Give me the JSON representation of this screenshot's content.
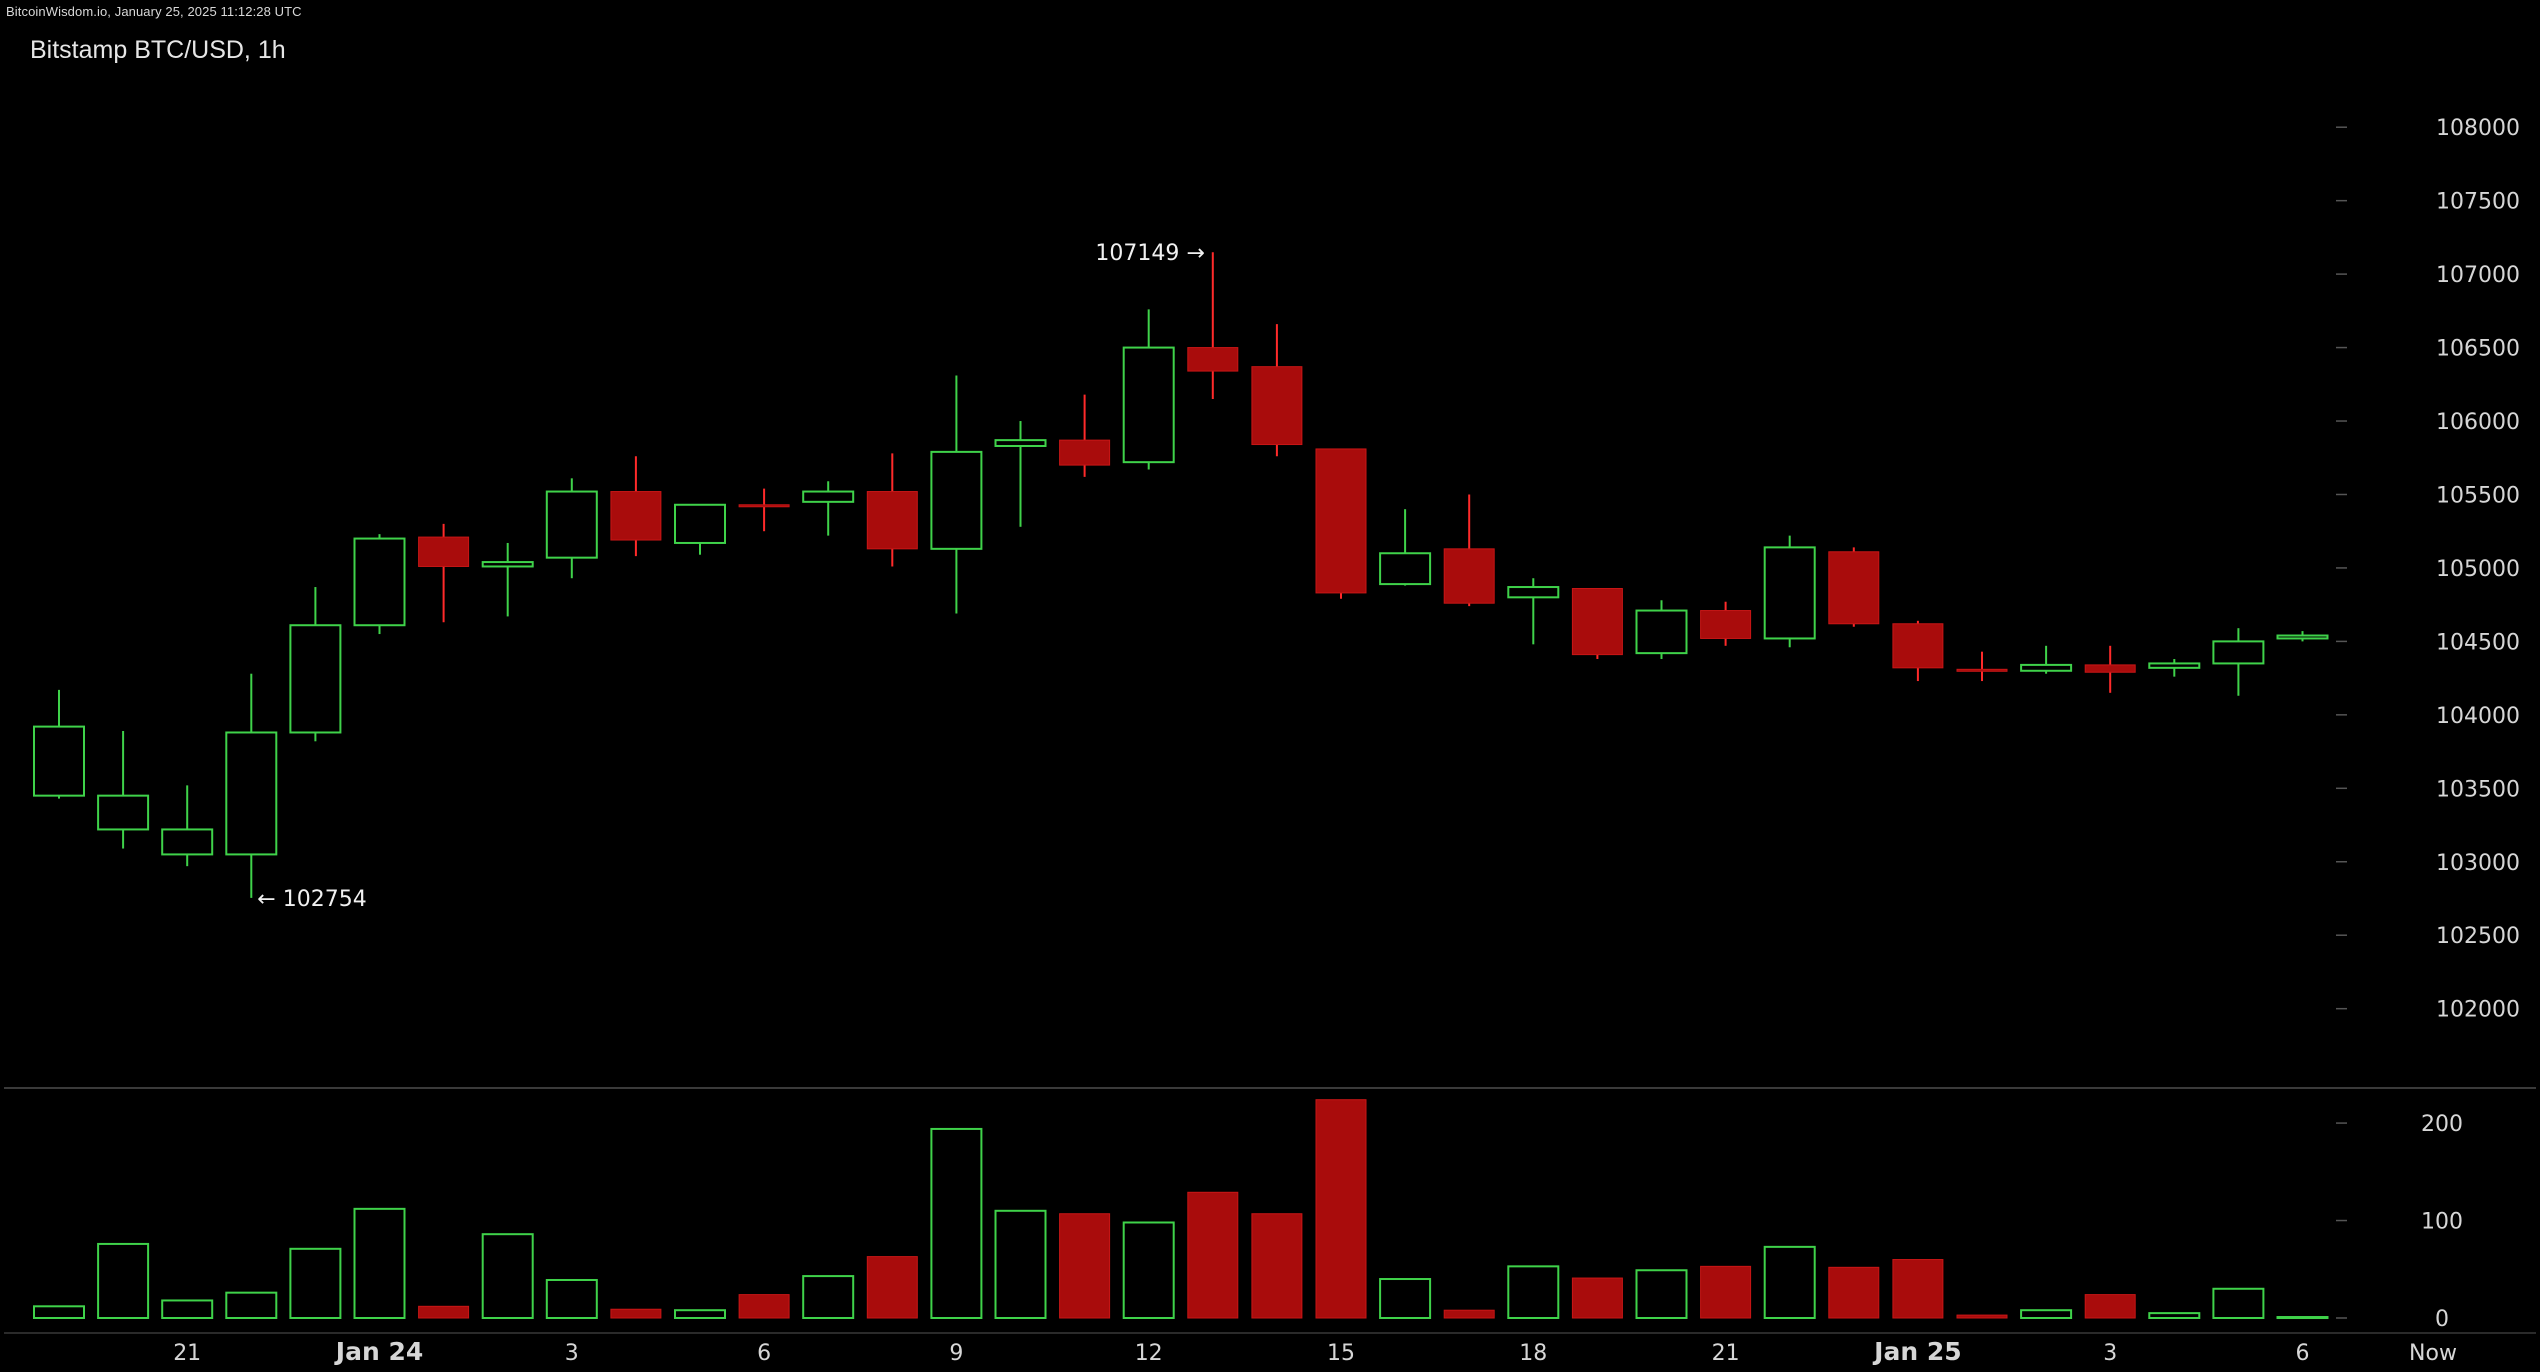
{
  "watermark": "BitcoinWisdom.io, January 25, 2025 11:12:28 UTC",
  "title": "Bitstamp BTC/USD, 1h",
  "colors": {
    "up": "#3fd24a",
    "down": "#a90c0c",
    "down_wick": "#ff2a2a",
    "axis_text": "#d6d6d6",
    "divider": "#3a3a3a",
    "background": "#000000"
  },
  "chart_data": {
    "type": "candlestick",
    "price_axis": {
      "ticks": [
        102000,
        102500,
        103000,
        103500,
        104000,
        104500,
        105000,
        105500,
        106000,
        106500,
        107000,
        107500,
        108000
      ],
      "range": [
        101460,
        108580
      ]
    },
    "volume_axis": {
      "ticks": [
        0,
        100,
        200
      ],
      "range": [
        0,
        236
      ]
    },
    "x_labels": [
      {
        "index": 2,
        "label": "21",
        "bold": false
      },
      {
        "index": 5,
        "label": "Jan 24",
        "bold": true
      },
      {
        "index": 8,
        "label": "3",
        "bold": false
      },
      {
        "index": 11,
        "label": "6",
        "bold": false
      },
      {
        "index": 14,
        "label": "9",
        "bold": false
      },
      {
        "index": 17,
        "label": "12",
        "bold": false
      },
      {
        "index": 20,
        "label": "15",
        "bold": false
      },
      {
        "index": 23,
        "label": "18",
        "bold": false
      },
      {
        "index": 26,
        "label": "21",
        "bold": false
      },
      {
        "index": 29,
        "label": "Jan 25",
        "bold": true
      },
      {
        "index": 32,
        "label": "3",
        "bold": false
      },
      {
        "index": 35,
        "label": "6",
        "bold": false
      },
      {
        "index": 37,
        "label": "Now",
        "bold": false
      }
    ],
    "annotations": [
      {
        "index": 3,
        "text": "← 102754",
        "anchor": "low"
      },
      {
        "index": 18,
        "text": "107149 →",
        "anchor": "high"
      }
    ],
    "candles": [
      {
        "o": 103450,
        "h": 104170,
        "l": 103430,
        "c": 103920,
        "v": 12
      },
      {
        "o": 103220,
        "h": 103890,
        "l": 103090,
        "c": 103450,
        "v": 76
      },
      {
        "o": 103050,
        "h": 103520,
        "l": 102970,
        "c": 103220,
        "v": 18
      },
      {
        "o": 103050,
        "h": 104280,
        "l": 102754,
        "c": 103880,
        "v": 26
      },
      {
        "o": 103880,
        "h": 104870,
        "l": 103820,
        "c": 104610,
        "v": 71
      },
      {
        "o": 104610,
        "h": 105230,
        "l": 104550,
        "c": 105200,
        "v": 112
      },
      {
        "o": 105210,
        "h": 105300,
        "l": 104630,
        "c": 105010,
        "v": 12
      },
      {
        "o": 105010,
        "h": 105170,
        "l": 104670,
        "c": 105040,
        "v": 86
      },
      {
        "o": 105070,
        "h": 105610,
        "l": 104930,
        "c": 105520,
        "v": 39
      },
      {
        "o": 105520,
        "h": 105760,
        "l": 105080,
        "c": 105190,
        "v": 9
      },
      {
        "o": 105170,
        "h": 105430,
        "l": 105090,
        "c": 105430,
        "v": 8
      },
      {
        "o": 105430,
        "h": 105540,
        "l": 105250,
        "c": 105420,
        "v": 24
      },
      {
        "o": 105450,
        "h": 105590,
        "l": 105220,
        "c": 105520,
        "v": 43
      },
      {
        "o": 105520,
        "h": 105780,
        "l": 105010,
        "c": 105130,
        "v": 63
      },
      {
        "o": 105130,
        "h": 106310,
        "l": 104690,
        "c": 105790,
        "v": 194
      },
      {
        "o": 105830,
        "h": 106000,
        "l": 105280,
        "c": 105870,
        "v": 110
      },
      {
        "o": 105870,
        "h": 106180,
        "l": 105620,
        "c": 105700,
        "v": 107
      },
      {
        "o": 105720,
        "h": 106760,
        "l": 105670,
        "c": 106500,
        "v": 98
      },
      {
        "o": 106500,
        "h": 107149,
        "l": 106150,
        "c": 106340,
        "v": 129
      },
      {
        "o": 106370,
        "h": 106660,
        "l": 105760,
        "c": 105840,
        "v": 107
      },
      {
        "o": 105810,
        "h": 105810,
        "l": 104790,
        "c": 104830,
        "v": 224
      },
      {
        "o": 104890,
        "h": 105400,
        "l": 104880,
        "c": 105100,
        "v": 40
      },
      {
        "o": 105130,
        "h": 105500,
        "l": 104740,
        "c": 104760,
        "v": 8
      },
      {
        "o": 104800,
        "h": 104930,
        "l": 104480,
        "c": 104870,
        "v": 53
      },
      {
        "o": 104860,
        "h": 104860,
        "l": 104380,
        "c": 104410,
        "v": 41
      },
      {
        "o": 104420,
        "h": 104780,
        "l": 104380,
        "c": 104710,
        "v": 49
      },
      {
        "o": 104710,
        "h": 104770,
        "l": 104470,
        "c": 104520,
        "v": 53
      },
      {
        "o": 104520,
        "h": 105220,
        "l": 104460,
        "c": 105140,
        "v": 73
      },
      {
        "o": 105110,
        "h": 105140,
        "l": 104600,
        "c": 104620,
        "v": 52
      },
      {
        "o": 104620,
        "h": 104640,
        "l": 104230,
        "c": 104320,
        "v": 60
      },
      {
        "o": 104310,
        "h": 104430,
        "l": 104230,
        "c": 104300,
        "v": 3
      },
      {
        "o": 104300,
        "h": 104470,
        "l": 104280,
        "c": 104340,
        "v": 8
      },
      {
        "o": 104340,
        "h": 104470,
        "l": 104150,
        "c": 104290,
        "v": 24
      },
      {
        "o": 104320,
        "h": 104380,
        "l": 104260,
        "c": 104350,
        "v": 5
      },
      {
        "o": 104350,
        "h": 104590,
        "l": 104130,
        "c": 104500,
        "v": 30
      },
      {
        "o": 104520,
        "h": 104570,
        "l": 104500,
        "c": 104540,
        "v": 1
      }
    ]
  }
}
